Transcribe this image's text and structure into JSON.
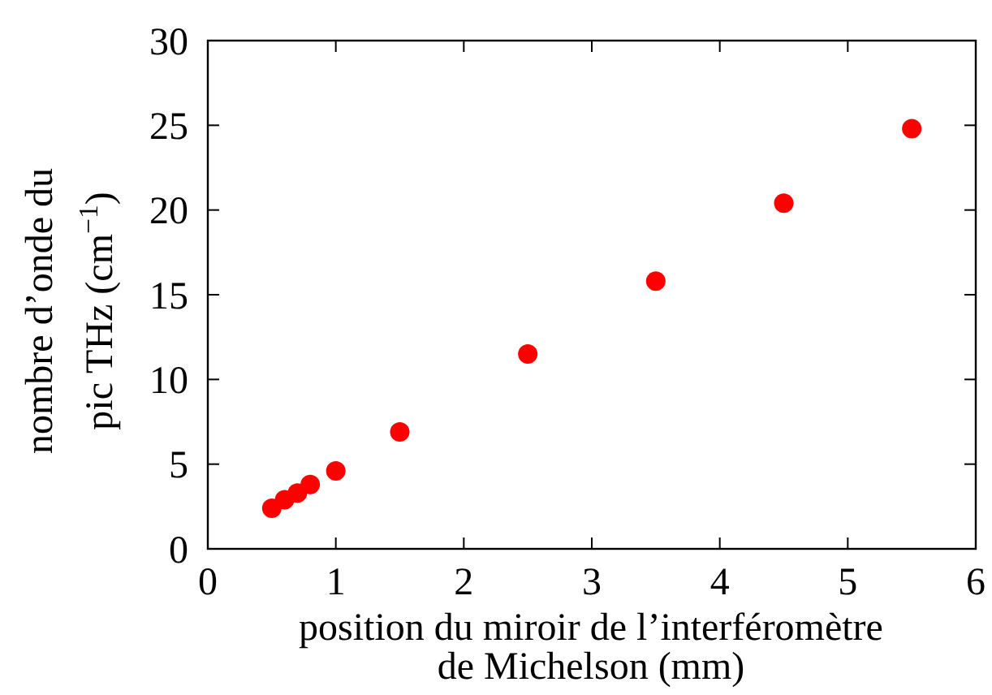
{
  "chart_data": {
    "type": "scatter",
    "xlabel": "position du miroir de l’interféromètre\nde Michelson (mm)",
    "ylabel": "nombre d’onde du\npic THz (cm$^{−1}$)",
    "x": [
      0.5,
      0.6,
      0.7,
      0.8,
      1.0,
      1.5,
      2.5,
      3.5,
      4.5,
      5.5
    ],
    "series": [
      {
        "color": "#ff0000",
        "values": [
          2.4,
          2.9,
          3.3,
          3.8,
          4.6,
          6.9,
          11.5,
          15.8,
          20.4,
          24.8
        ]
      }
    ],
    "xlim": [
      0,
      6
    ],
    "xticks": [
      0,
      1,
      2,
      3,
      4,
      5,
      6
    ],
    "ylim": [
      0,
      30
    ],
    "yticks": [
      0,
      5,
      10,
      15,
      20,
      25,
      30
    ],
    "marker": "circle",
    "grid": false
  }
}
